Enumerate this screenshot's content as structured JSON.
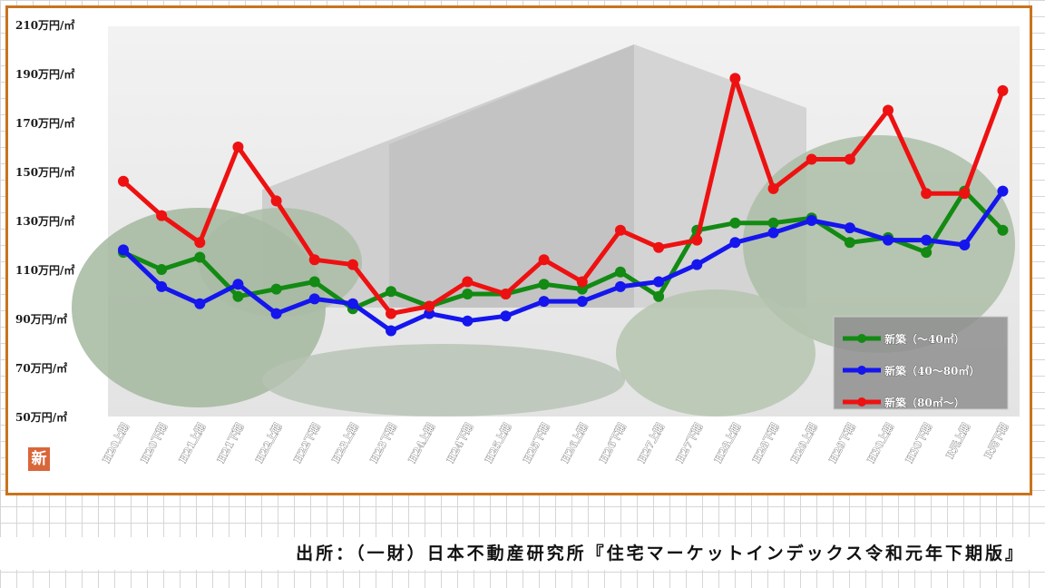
{
  "source_note": "出所：（一財）日本不動産研究所『住宅マーケットインデックス令和元年下期版』",
  "logo_char": "新",
  "colors": {
    "frame": "#c9731c",
    "series_small": "#138a13",
    "series_medium": "#1515ee",
    "series_large": "#ee1111"
  },
  "chart_data": {
    "type": "line",
    "title": "",
    "xlabel": "",
    "ylabel": "",
    "ylim": [
      50,
      210
    ],
    "yticks": [
      50,
      70,
      90,
      110,
      130,
      150,
      170,
      190,
      210
    ],
    "ytick_labels": [
      "50万円/㎡",
      "70万円/㎡",
      "90万円/㎡",
      "110万円/㎡",
      "130万円/㎡",
      "150万円/㎡",
      "170万円/㎡",
      "190万円/㎡",
      "210万円/㎡"
    ],
    "categories": [
      "H20上期",
      "H20下期",
      "H21上期",
      "H21下期",
      "H22上期",
      "H22下期",
      "H23上期",
      "H23下期",
      "H24上期",
      "H24下期",
      "H25上期",
      "H25下期",
      "H26上期",
      "H26下期",
      "H27上期",
      "H27下期",
      "H28上期",
      "H28下期",
      "H29上期",
      "H29下期",
      "H30上期",
      "H30下期",
      "R元上期",
      "R元下期"
    ],
    "legend_position": "bottom-right",
    "series": [
      {
        "name": "新築（～40㎡）",
        "color": "#138a13",
        "values": [
          117,
          110,
          115,
          99,
          102,
          105,
          94,
          101,
          95,
          100,
          100,
          104,
          102,
          109,
          99,
          126,
          129,
          129,
          131,
          121,
          123,
          117,
          142,
          126
        ]
      },
      {
        "name": "新築（40～80㎡）",
        "color": "#1515ee",
        "values": [
          118,
          103,
          96,
          104,
          92,
          98,
          96,
          85,
          92,
          89,
          91,
          97,
          97,
          103,
          105,
          112,
          121,
          125,
          130,
          127,
          122,
          122,
          120,
          142
        ]
      },
      {
        "name": "新築（80㎡～）",
        "color": "#ee1111",
        "values": [
          146,
          132,
          121,
          160,
          138,
          114,
          112,
          92,
          95,
          105,
          100,
          114,
          105,
          126,
          119,
          122,
          188,
          143,
          155,
          155,
          175,
          141,
          141,
          183
        ]
      }
    ]
  }
}
